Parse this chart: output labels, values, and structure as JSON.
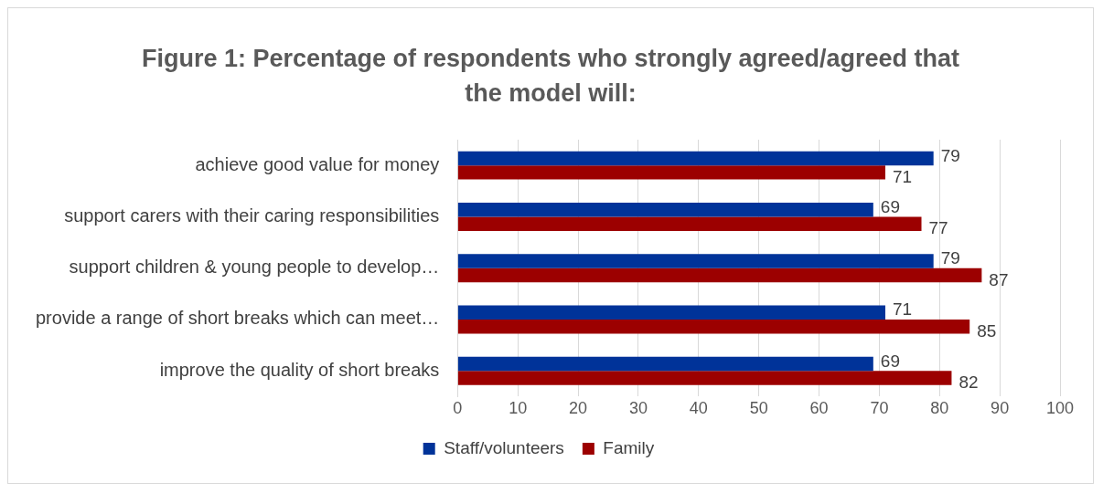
{
  "chart_data": {
    "type": "bar",
    "orientation": "horizontal",
    "title": "Figure 1: Percentage of respondents who strongly agreed/agreed that the model will:",
    "categories": [
      "achieve good value for money",
      "support carers with their caring responsibilities",
      "support children & young people to develop…",
      "provide a range of short breaks which can meet…",
      "improve the quality of short breaks"
    ],
    "series": [
      {
        "name": "Staff/volunteers",
        "color": "#003399",
        "values": [
          79,
          69,
          79,
          71,
          69
        ]
      },
      {
        "name": "Family",
        "color": "#9c0000",
        "values": [
          71,
          77,
          87,
          85,
          82
        ]
      }
    ],
    "xlim": [
      0,
      100
    ],
    "xticks": [
      0,
      10,
      20,
      30,
      40,
      50,
      60,
      70,
      80,
      90,
      100
    ],
    "grid": "x",
    "legend": "bottom",
    "data_labels": true
  }
}
